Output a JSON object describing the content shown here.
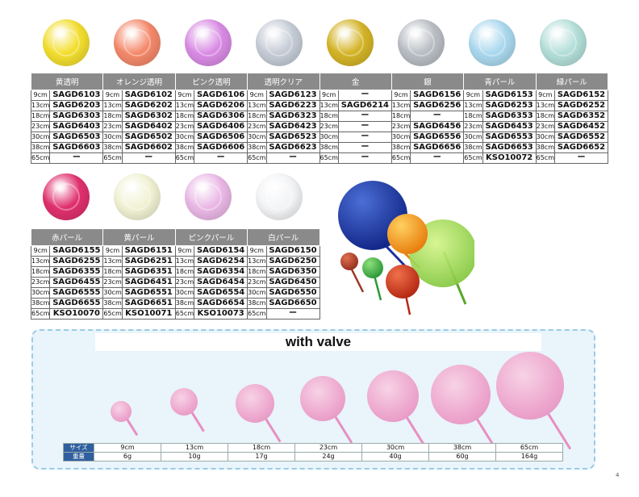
{
  "table1": {
    "headers": [
      "黄透明",
      "オレンジ透明",
      "ピンク透明",
      "透明クリア",
      "金",
      "銀",
      "青パール",
      "緑パール"
    ],
    "colors": [
      "#f3de2f",
      "#f4896b",
      "#d98be4",
      "#c5ccd6",
      "#d4b427",
      "#b9bec4",
      "#aad8ee",
      "#b4dfd9"
    ],
    "rows": [
      [
        [
          "9cm",
          "SAGD6103"
        ],
        [
          "9cm",
          "SAGD6102"
        ],
        [
          "9cm",
          "SAGD6106"
        ],
        [
          "9cm",
          "SAGD6123"
        ],
        [
          "9cm",
          "ー"
        ],
        [
          "9cm",
          "SAGD6156"
        ],
        [
          "9cm",
          "SAGD6153"
        ],
        [
          "9cm",
          "SAGD6152"
        ]
      ],
      [
        [
          "13cm",
          "SAGD6203"
        ],
        [
          "13cm",
          "SAGD6202"
        ],
        [
          "13cm",
          "SAGD6206"
        ],
        [
          "13cm",
          "SAGD6223"
        ],
        [
          "13cm",
          "SAGD6214"
        ],
        [
          "13cm",
          "SAGD6256"
        ],
        [
          "13cm",
          "SAGD6253"
        ],
        [
          "13cm",
          "SAGD6252"
        ]
      ],
      [
        [
          "18cm",
          "SAGD6303"
        ],
        [
          "18cm",
          "SAGD6302"
        ],
        [
          "18cm",
          "SAGD6306"
        ],
        [
          "18cm",
          "SAGD6323"
        ],
        [
          "18cm",
          "ー"
        ],
        [
          "18cm",
          "ー"
        ],
        [
          "18cm",
          "SAGD6353"
        ],
        [
          "18cm",
          "SAGD6352"
        ]
      ],
      [
        [
          "23cm",
          "SAGD6403"
        ],
        [
          "23cm",
          "SAGD6402"
        ],
        [
          "23cm",
          "SAGD6406"
        ],
        [
          "23cm",
          "SAGD6423"
        ],
        [
          "23cm",
          "ー"
        ],
        [
          "23cm",
          "SAGD6456"
        ],
        [
          "23cm",
          "SAGD6453"
        ],
        [
          "23cm",
          "SAGD6452"
        ]
      ],
      [
        [
          "30cm",
          "SAGD6503"
        ],
        [
          "30cm",
          "SAGD6502"
        ],
        [
          "30cm",
          "SAGD6506"
        ],
        [
          "30cm",
          "SAGD6523"
        ],
        [
          "30cm",
          "ー"
        ],
        [
          "30cm",
          "SAGD6556"
        ],
        [
          "30cm",
          "SAGD6553"
        ],
        [
          "30cm",
          "SAGD6552"
        ]
      ],
      [
        [
          "38cm",
          "SAGD6603"
        ],
        [
          "38cm",
          "SAGD6602"
        ],
        [
          "38cm",
          "SAGD6606"
        ],
        [
          "38cm",
          "SAGD6623"
        ],
        [
          "38cm",
          "ー"
        ],
        [
          "38cm",
          "SAGD6656"
        ],
        [
          "38cm",
          "SAGD6653"
        ],
        [
          "38cm",
          "SAGD6652"
        ]
      ],
      [
        [
          "65cm",
          "ー"
        ],
        [
          "65cm",
          "ー"
        ],
        [
          "65cm",
          "ー"
        ],
        [
          "65cm",
          "ー"
        ],
        [
          "65cm",
          "ー"
        ],
        [
          "65cm",
          "ー"
        ],
        [
          "65cm",
          "KSO10072"
        ],
        [
          "65cm",
          "ー"
        ]
      ]
    ]
  },
  "table2": {
    "headers": [
      "赤パール",
      "黄パール",
      "ピンクパール",
      "白パール"
    ],
    "colors": [
      "#e0306e",
      "#f1f2d4",
      "#eab8e6",
      "#f3f4f6"
    ],
    "rows": [
      [
        [
          "9cm",
          "SAGD6155"
        ],
        [
          "9cm",
          "SAGD6151"
        ],
        [
          "9cm",
          "SAGD6154"
        ],
        [
          "9cm",
          "SAGD6150"
        ]
      ],
      [
        [
          "13cm",
          "SAGD6255"
        ],
        [
          "13cm",
          "SAGD6251"
        ],
        [
          "13cm",
          "SAGD6254"
        ],
        [
          "13cm",
          "SAGD6250"
        ]
      ],
      [
        [
          "18cm",
          "SAGD6355"
        ],
        [
          "18cm",
          "SAGD6351"
        ],
        [
          "18cm",
          "SAGD6354"
        ],
        [
          "18cm",
          "SAGD6350"
        ]
      ],
      [
        [
          "23cm",
          "SAGD6455"
        ],
        [
          "23cm",
          "SAGD6451"
        ],
        [
          "23cm",
          "SAGD6454"
        ],
        [
          "23cm",
          "SAGD6450"
        ]
      ],
      [
        [
          "30cm",
          "SAGD6555"
        ],
        [
          "30cm",
          "SAGD6551"
        ],
        [
          "30cm",
          "SAGD6554"
        ],
        [
          "30cm",
          "SAGD6550"
        ]
      ],
      [
        [
          "38cm",
          "SAGD6655"
        ],
        [
          "38cm",
          "SAGD6651"
        ],
        [
          "38cm",
          "SAGD6654"
        ],
        [
          "38cm",
          "SAGD6650"
        ]
      ],
      [
        [
          "65cm",
          "KSO10070"
        ],
        [
          "65cm",
          "KSO10071"
        ],
        [
          "65cm",
          "KSO10073"
        ],
        [
          "65cm",
          "ー"
        ]
      ]
    ]
  },
  "valve": {
    "title": "with valve",
    "size_label": "サイズ",
    "weight_label": "重量",
    "sizes": [
      "9cm",
      "13cm",
      "18cm",
      "23cm",
      "30cm",
      "38cm",
      "65cm"
    ],
    "weights": [
      "6g",
      "10g",
      "17g",
      "24g",
      "40g",
      "60g",
      "164g"
    ]
  },
  "page_number": "4"
}
